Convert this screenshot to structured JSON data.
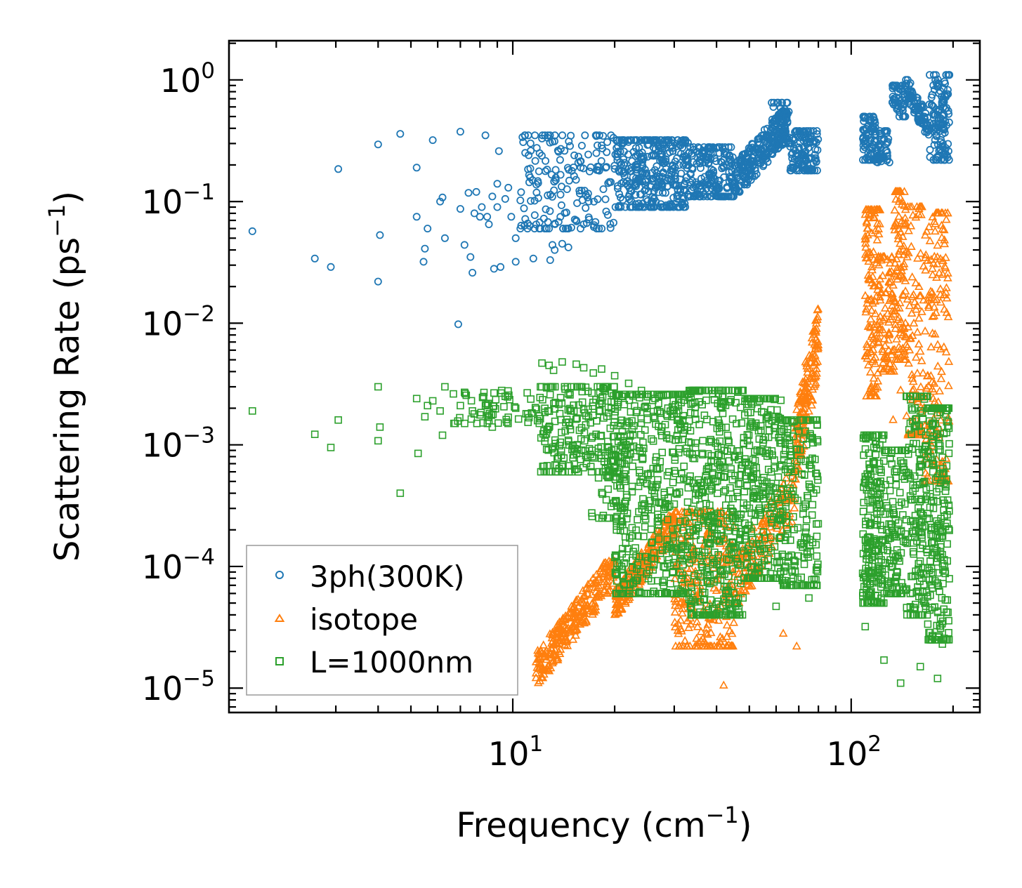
{
  "chart_data": {
    "type": "scatter",
    "xscale": "log",
    "yscale": "log",
    "xlabel": "Frequency (cm",
    "xlabel_sup": "−1",
    "xlabel_end": ")",
    "ylabel": "Scattering Rate (ps",
    "ylabel_sup": "−1",
    "ylabel_end": ")",
    "xlim": [
      1.45,
      240
    ],
    "ylim": [
      6.3e-06,
      2.1
    ],
    "xticks": [
      {
        "value": 10,
        "base": "10",
        "exp": "1"
      },
      {
        "value": 100,
        "base": "10",
        "exp": "2"
      }
    ],
    "yticks": [
      {
        "value": 1,
        "base": "10",
        "exp": "0"
      },
      {
        "value": 0.1,
        "base": "10",
        "exp": "−1"
      },
      {
        "value": 0.01,
        "base": "10",
        "exp": "−2"
      },
      {
        "value": 0.001,
        "base": "10",
        "exp": "−3"
      },
      {
        "value": 0.0001,
        "base": "10",
        "exp": "−4"
      },
      {
        "value": 1e-05,
        "base": "10",
        "exp": "−5"
      }
    ],
    "legend_position": "lower-left",
    "series": [
      {
        "name": "3ph(300K)",
        "marker": "circle",
        "color": "#1f77b4",
        "points": [
          [
            1.7,
            0.057
          ],
          [
            2.6,
            0.034
          ],
          [
            2.9,
            0.029
          ],
          [
            3.05,
            0.185
          ],
          [
            4.0,
            0.295
          ],
          [
            4.0,
            0.022
          ],
          [
            4.05,
            0.053
          ],
          [
            4.65,
            0.36
          ],
          [
            5.2,
            0.19
          ],
          [
            5.2,
            0.075
          ],
          [
            5.45,
            0.032
          ],
          [
            5.5,
            0.041
          ],
          [
            5.6,
            0.06
          ],
          [
            5.8,
            0.32
          ],
          [
            6.1,
            0.1
          ],
          [
            6.2,
            0.108
          ],
          [
            6.3,
            0.05
          ],
          [
            6.9,
            0.0098
          ],
          [
            7.0,
            0.375
          ],
          [
            7.0,
            0.087
          ],
          [
            7.2,
            0.044
          ],
          [
            7.4,
            0.118
          ],
          [
            7.5,
            0.035
          ],
          [
            7.6,
            0.026
          ],
          [
            7.7,
            0.08
          ],
          [
            7.8,
            0.12
          ],
          [
            8.0,
            0.075
          ],
          [
            8.1,
            0.09
          ],
          [
            8.3,
            0.35
          ],
          [
            8.4,
            0.075
          ],
          [
            8.5,
            0.065
          ],
          [
            8.7,
            0.11
          ],
          [
            8.8,
            0.028
          ],
          [
            9.0,
            0.14
          ],
          [
            9.0,
            0.09
          ],
          [
            9.1,
            0.26
          ],
          [
            9.2,
            0.029
          ],
          [
            9.5,
            0.105
          ],
          [
            9.7,
            0.13
          ],
          [
            9.9,
            0.075
          ],
          [
            10.2,
            0.05
          ],
          [
            10.2,
            0.032
          ],
          [
            11.5,
            0.034
          ],
          [
            11.6,
            0.06
          ],
          [
            12.9,
            0.033
          ],
          [
            13.1,
            0.044
          ],
          [
            13.3,
            0.04
          ],
          [
            14.0,
            0.045
          ],
          [
            14.6,
            0.042
          ],
          [
            15.4,
            0.07
          ],
          [
            16.2,
            0.065
          ],
          [
            12.2,
            0.33
          ],
          [
            12.7,
            0.35
          ],
          [
            13.1,
            0.31
          ],
          [
            12.0,
            0.25
          ],
          [
            13.8,
            0.22
          ]
        ],
        "bands": [
          {
            "x": [
              10.5,
              20.0
            ],
            "y": [
              0.06,
              0.35
            ],
            "n": 170,
            "skew": 0.3
          },
          {
            "x": [
              20.0,
              33.0
            ],
            "y": [
              0.09,
              0.32
            ],
            "n": 340
          },
          {
            "x": [
              33.0,
              45.0
            ],
            "y": [
              0.11,
              0.28
            ],
            "n": 180
          },
          {
            "x": [
              45.0,
              65.0
            ],
            "y": [
              0.12,
              0.55
            ],
            "n": 240,
            "trend": "up"
          },
          {
            "x": [
              58.0,
              66.0
            ],
            "y": [
              0.3,
              0.65
            ],
            "n": 50
          },
          {
            "x": [
              66.0,
              80.0
            ],
            "y": [
              0.18,
              0.38
            ],
            "n": 120
          },
          {
            "x": [
              108.0,
              118.0
            ],
            "y": [
              0.22,
              0.5
            ],
            "n": 70
          },
          {
            "x": [
              118.0,
              130.0
            ],
            "y": [
              0.21,
              0.38
            ],
            "n": 50
          },
          {
            "x": [
              132.0,
              145.0
            ],
            "y": [
              0.5,
              0.9
            ],
            "n": 50
          },
          {
            "x": [
              145.0,
              170.0
            ],
            "y": [
              0.35,
              1.0
            ],
            "n": 80,
            "trend": "down"
          },
          {
            "x": [
              170.0,
              195.0
            ],
            "y": [
              0.22,
              1.1
            ],
            "n": 120
          }
        ]
      },
      {
        "name": "isotope",
        "marker": "triangle",
        "color": "#ff7f0e",
        "points": [
          [
            42.0,
            1.05e-05
          ],
          [
            63.0,
            2.8e-05
          ],
          [
            69.0,
            2.2e-05
          ],
          [
            133.0,
            0.0016
          ],
          [
            140.0,
            0.0028
          ]
        ],
        "bands": [
          {
            "x": [
              11.7,
              20.0
            ],
            "y": [
              1.1e-05,
              0.00011
            ],
            "n": 260,
            "trend": "ramp"
          },
          {
            "x": [
              20.0,
              30.0
            ],
            "y": [
              4e-05,
              0.00026
            ],
            "n": 240,
            "trend": "ramp"
          },
          {
            "x": [
              30.0,
              45.0
            ],
            "y": [
              2.2e-05,
              0.00028
            ],
            "n": 280
          },
          {
            "x": [
              45.0,
              68.0
            ],
            "y": [
              5e-05,
              0.0006
            ],
            "n": 160,
            "trend": "up"
          },
          {
            "x": [
              68.0,
              80.0
            ],
            "y": [
              0.0005,
              0.013
            ],
            "n": 160,
            "trend": "up"
          },
          {
            "x": [
              110.0,
              122.0
            ],
            "y": [
              0.0025,
              0.085
            ],
            "n": 140
          },
          {
            "x": [
              122.0,
              134.0
            ],
            "y": [
              0.004,
              0.035
            ],
            "n": 70
          },
          {
            "x": [
              134.0,
              145.0
            ],
            "y": [
              0.005,
              0.12
            ],
            "n": 100
          },
          {
            "x": [
              145.0,
              165.0
            ],
            "y": [
              0.0012,
              0.09
            ],
            "n": 100
          },
          {
            "x": [
              165.0,
              195.0
            ],
            "y": [
              0.0005,
              0.08
            ],
            "n": 160
          }
        ]
      },
      {
        "name": "L=1000nm",
        "marker": "square",
        "color": "#2ca02c",
        "points": [
          [
            1.7,
            0.0019
          ],
          [
            2.6,
            0.00122
          ],
          [
            2.9,
            0.00095
          ],
          [
            3.05,
            0.0016
          ],
          [
            4.0,
            0.003
          ],
          [
            4.05,
            0.0014
          ],
          [
            4.0,
            0.00108
          ],
          [
            4.65,
            0.0004
          ],
          [
            5.2,
            0.0024
          ],
          [
            5.25,
            0.00085
          ],
          [
            5.5,
            0.0017
          ],
          [
            5.6,
            0.0021
          ],
          [
            5.8,
            0.0023
          ],
          [
            6.1,
            0.0019
          ],
          [
            6.2,
            0.0012
          ],
          [
            6.3,
            0.003
          ],
          [
            7.0,
            0.0021
          ],
          [
            7.2,
            0.0027
          ],
          [
            7.6,
            0.0019
          ],
          [
            8.3,
            0.0021
          ],
          [
            8.7,
            0.0014
          ],
          [
            9.5,
            0.0025
          ],
          [
            10.2,
            0.002
          ],
          [
            12.2,
            0.0047
          ],
          [
            12.8,
            0.0045
          ],
          [
            13.2,
            0.0041
          ],
          [
            14.0,
            0.0048
          ],
          [
            15.4,
            0.0046
          ],
          [
            16.2,
            0.0043
          ],
          [
            17.3,
            0.0039
          ],
          [
            18.3,
            0.0042
          ],
          [
            20.0,
            0.0037
          ],
          [
            22.0,
            0.0032
          ],
          [
            24.0,
            0.0028
          ],
          [
            27.0,
            0.0025
          ],
          [
            60.0,
            4.7e-05
          ],
          [
            75.0,
            5.5e-05
          ],
          [
            110.0,
            3.2e-05
          ],
          [
            125.0,
            1.7e-05
          ],
          [
            140.0,
            1.1e-05
          ],
          [
            160.0,
            1.5e-05
          ],
          [
            180.0,
            1.2e-05
          ],
          [
            186.0,
            2.3e-05
          ]
        ],
        "bands": [
          {
            "x": [
              6.5,
              12.0
            ],
            "y": [
              0.0015,
              0.0028
            ],
            "n": 60
          },
          {
            "x": [
              12.0,
              20.0
            ],
            "y": [
              0.0006,
              0.003
            ],
            "n": 220
          },
          {
            "x": [
              17.0,
              22.0
            ],
            "y": [
              0.00025,
              0.0009
            ],
            "n": 40
          },
          {
            "x": [
              20.0,
              33.0
            ],
            "y": [
              6e-05,
              0.0026
            ],
            "n": 460
          },
          {
            "x": [
              33.0,
              48.0
            ],
            "y": [
              4e-05,
              0.0028
            ],
            "n": 420
          },
          {
            "x": [
              48.0,
              62.0
            ],
            "y": [
              8e-05,
              0.0024
            ],
            "n": 260
          },
          {
            "x": [
              62.0,
              80.0
            ],
            "y": [
              7e-05,
              0.0016
            ],
            "n": 200
          },
          {
            "x": [
              108.0,
              125.0
            ],
            "y": [
              5e-05,
              0.0012
            ],
            "n": 200
          },
          {
            "x": [
              125.0,
              145.0
            ],
            "y": [
              6e-05,
              0.0009
            ],
            "n": 120
          },
          {
            "x": [
              145.0,
              168.0
            ],
            "y": [
              4e-05,
              0.0025
            ],
            "n": 160
          },
          {
            "x": [
              168.0,
              195.0
            ],
            "y": [
              2.5e-05,
              0.002
            ],
            "n": 220
          }
        ]
      }
    ]
  }
}
